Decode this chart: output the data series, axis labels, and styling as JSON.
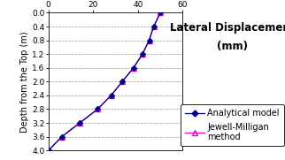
{
  "title_line1": "Lateral Displacement",
  "title_line2": "(mm)",
  "ylabel": "Depth from the Top (m)",
  "xlim": [
    0,
    60
  ],
  "ylim": [
    4,
    0
  ],
  "xticks": [
    0,
    20,
    40,
    60
  ],
  "yticks": [
    0,
    0.4,
    0.8,
    1.2,
    1.6,
    2.0,
    2.4,
    2.8,
    3.2,
    3.6,
    4.0
  ],
  "analytical_depth": [
    0.0,
    0.4,
    0.8,
    1.2,
    1.6,
    2.0,
    2.4,
    2.8,
    3.2,
    3.6,
    4.0
  ],
  "analytical_disp": [
    50,
    47,
    45,
    42,
    38,
    33,
    28,
    22,
    14,
    6,
    0
  ],
  "jewell_depth": [
    0.0,
    0.4,
    0.8,
    1.2,
    1.6,
    2.0,
    2.4,
    2.8,
    3.2,
    3.6,
    4.0
  ],
  "jewell_disp": [
    50,
    47,
    45,
    42,
    38,
    33,
    28,
    22,
    14,
    6,
    0
  ],
  "analytical_color": "#00008B",
  "jewell_color": "#FF00CC",
  "analytical_marker": "D",
  "jewell_marker": "^",
  "analytical_label": "Analytical model",
  "jewell_label": "Jewell-Milligan\nmethod",
  "bg_color": "#ffffff",
  "grid_color": "#555555",
  "title_fontsize": 8.5,
  "label_fontsize": 7,
  "tick_fontsize": 6.5,
  "legend_fontsize": 7
}
